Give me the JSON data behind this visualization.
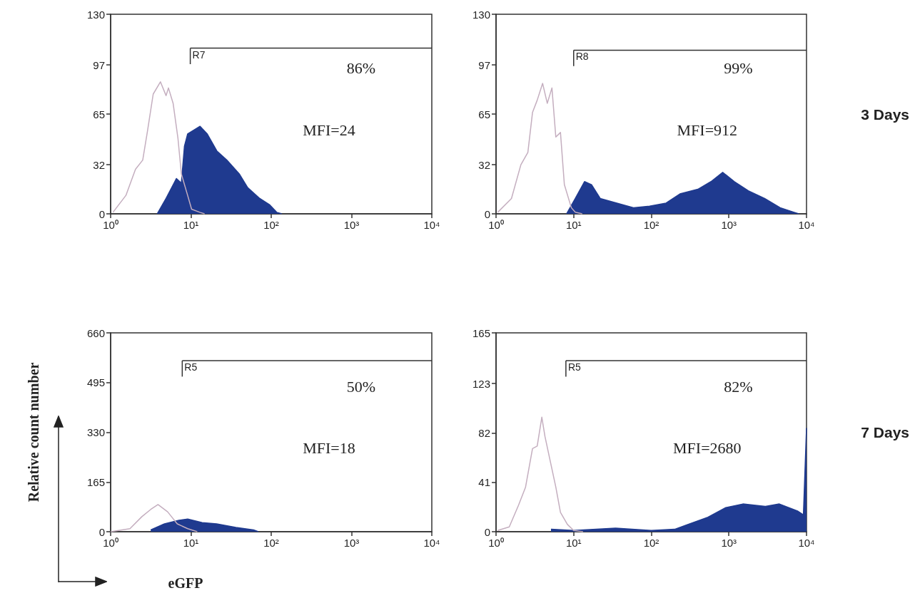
{
  "chart_data": [
    {
      "type": "area",
      "xlim": [
        1,
        10000
      ],
      "ylim": [
        0,
        130
      ],
      "log": "x",
      "grid": false,
      "xticks": [
        {
          "value": 1,
          "label": "10⁰"
        },
        {
          "value": 10,
          "label": "10¹"
        },
        {
          "value": 100,
          "label": "10²"
        },
        {
          "value": 1000,
          "label": "10³"
        },
        {
          "value": 10000,
          "label": "10⁴"
        }
      ],
      "yticks": [
        0,
        32,
        65,
        97,
        130
      ],
      "annotations": [
        "R7",
        "86%",
        "MFI=24"
      ],
      "series": [
        {
          "type": "line",
          "color": "#c4aebf",
          "x": [
            1.07,
            1.55,
            2.04,
            2.51,
            2.88,
            3.39,
            4.17,
            4.9,
            5.25,
            6.0,
            6.9,
            7.6,
            9.1,
            10.2,
            12.9,
            14.8
          ],
          "values": [
            1,
            12,
            29,
            35,
            54,
            78,
            86,
            77,
            82,
            72,
            49,
            26,
            12,
            3,
            1,
            0
          ]
        },
        {
          "color": "#1f3a8f",
          "x": [
            3.8,
            4.9,
            6.6,
            7.6,
            8.3,
            9.1,
            13,
            16,
            21,
            28,
            40,
            51,
            72,
            95,
            117,
            135
          ],
          "values": [
            0,
            10,
            23,
            20,
            44,
            52,
            57,
            52,
            41,
            35,
            26,
            17,
            10,
            6,
            1,
            0
          ]
        }
      ]
    },
    {
      "type": "area",
      "xlim": [
        1,
        10000
      ],
      "ylim": [
        0,
        130
      ],
      "log": "x",
      "grid": false,
      "xticks": [
        {
          "value": 1,
          "label": "10⁰"
        },
        {
          "value": 10,
          "label": "10¹"
        },
        {
          "value": 100,
          "label": "10²"
        },
        {
          "value": 1000,
          "label": "10³"
        },
        {
          "value": 10000,
          "label": "10⁴"
        }
      ],
      "yticks": [
        0,
        32,
        65,
        97,
        130
      ],
      "annotations": [
        "R8",
        "99%",
        "MFI=912",
        "3 Days"
      ],
      "series": [
        {
          "type": "line",
          "color": "#c4aebf",
          "x": [
            1.05,
            1.58,
            2.09,
            2.57,
            2.95,
            3.39,
            3.98,
            4.57,
            5.25,
            5.89,
            6.76,
            7.59,
            9.33,
            10.5,
            12.9
          ],
          "values": [
            1,
            10,
            32,
            40,
            66,
            74,
            85,
            72,
            82,
            50,
            53,
            19,
            4,
            1,
            0
          ]
        },
        {
          "color": "#1f3a8f",
          "x": [
            8.1,
            10.5,
            13.8,
            17,
            22,
            36,
            59,
            95,
            155,
            234,
            398,
            589,
            832,
            1175,
            1778,
            2884,
            4571,
            6918,
            7943
          ],
          "values": [
            0,
            10,
            21,
            19,
            10,
            7,
            4,
            5,
            7,
            13,
            16,
            21,
            27,
            21,
            15,
            10,
            4,
            1,
            0
          ]
        }
      ]
    },
    {
      "type": "area",
      "xlim": [
        1,
        10000
      ],
      "ylim": [
        0,
        660
      ],
      "log": "x",
      "grid": false,
      "xlabel": "eGFP",
      "ylabel": "Relative count number",
      "xticks": [
        {
          "value": 1,
          "label": "10⁰"
        },
        {
          "value": 10,
          "label": "10¹"
        },
        {
          "value": 100,
          "label": "10²"
        },
        {
          "value": 1000,
          "label": "10³"
        },
        {
          "value": 10000,
          "label": "10⁴"
        }
      ],
      "yticks": [
        0,
        165,
        330,
        495,
        660
      ],
      "annotations": [
        "R5",
        "50%",
        "MFI=18"
      ],
      "series": [
        {
          "type": "line",
          "color": "#c4aebf",
          "x": [
            1,
            1.74,
            2.45,
            3.16,
            3.89,
            5.13,
            6.76,
            9.12,
            12
          ],
          "values": [
            0,
            10,
            50,
            74,
            90,
            66,
            26,
            10,
            0
          ]
        },
        {
          "color": "#1f3a8f",
          "x": [
            3.16,
            4.68,
            7.08,
            9.12,
            13.8,
            20.9,
            36.3,
            60.3,
            69
          ],
          "values": [
            6,
            26,
            38,
            42,
            30,
            26,
            14,
            6,
            0
          ]
        }
      ]
    },
    {
      "type": "area",
      "xlim": [
        1,
        10000
      ],
      "ylim": [
        0,
        165
      ],
      "log": "x",
      "grid": false,
      "xticks": [
        {
          "value": 1,
          "label": "10⁰"
        },
        {
          "value": 10,
          "label": "10¹"
        },
        {
          "value": 100,
          "label": "10²"
        },
        {
          "value": 1000,
          "label": "10³"
        },
        {
          "value": 10000,
          "label": "10⁴"
        }
      ],
      "yticks": [
        0,
        41,
        82,
        123,
        165
      ],
      "annotations": [
        "R5",
        "82%",
        "MFI=2680",
        "7 Days"
      ],
      "series": [
        {
          "type": "line",
          "color": "#c4aebf",
          "x": [
            1.05,
            1.48,
            1.95,
            2.4,
            2.95,
            3.39,
            3.89,
            4.27,
            4.9,
            5.89,
            6.76,
            8.32,
            10,
            13.2
          ],
          "values": [
            1,
            4,
            22,
            37,
            69,
            71,
            95,
            79,
            61,
            37,
            16,
            6,
            1,
            0
          ]
        },
        {
          "color": "#1f3a8f",
          "x": [
            5.1,
            10,
            34.7,
            100,
            200,
            295,
            537,
            912,
            1514,
            2951,
            4467,
            7762,
            9120,
            10000
          ],
          "values": [
            2,
            1,
            3,
            1,
            2,
            6,
            12,
            20,
            23,
            21,
            23,
            17,
            14,
            86
          ]
        }
      ]
    }
  ]
}
